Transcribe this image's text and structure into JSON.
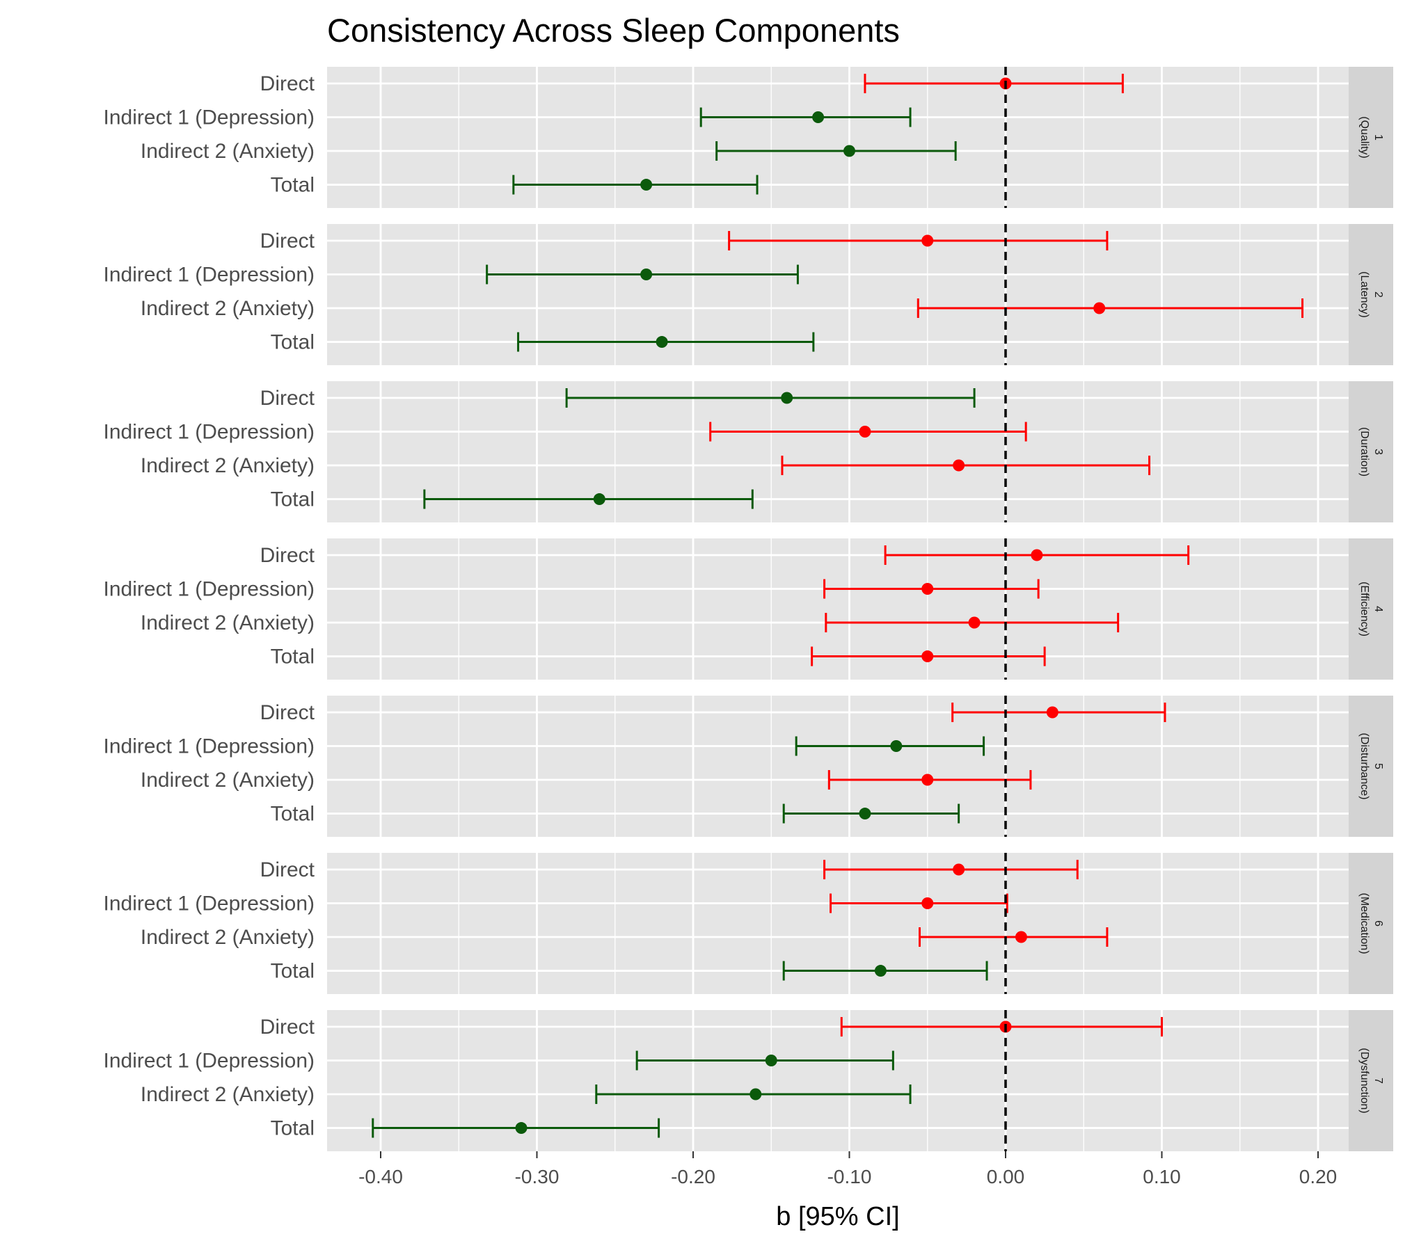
{
  "chart_data": {
    "type": "errorbar",
    "title": "Consistency Across Sleep Components",
    "xlabel": "b [95% CI]",
    "xlim": [
      -0.435,
      0.22
    ],
    "x_ticks": [
      -0.4,
      -0.3,
      -0.2,
      -0.1,
      0.0,
      0.1,
      0.2
    ],
    "x_tick_labels": [
      "-0.40",
      "-0.30",
      "-0.20",
      "-0.10",
      "0.00",
      "0.10",
      "0.20"
    ],
    "reference_line": 0,
    "categories": [
      "Direct",
      "Indirect 1 (Depression)",
      "Indirect 2 (Anxiety)",
      "Total"
    ],
    "colors": {
      "significant": "#0b5a0b",
      "nonsignificant": "#ff0000",
      "reference": "#000000",
      "panel_bg": "#e5e5e5",
      "strip_bg": "#d3d3d3",
      "grid": "#ffffff"
    },
    "grid": true,
    "facets": [
      {
        "number": "1",
        "name": "(Quality)",
        "points": [
          {
            "label": "Direct",
            "estimate": 0.0,
            "lower": -0.09,
            "upper": 0.075,
            "significant": false
          },
          {
            "label": "Indirect 1 (Depression)",
            "estimate": -0.12,
            "lower": -0.195,
            "upper": -0.061,
            "significant": true
          },
          {
            "label": "Indirect 2 (Anxiety)",
            "estimate": -0.1,
            "lower": -0.185,
            "upper": -0.032,
            "significant": true
          },
          {
            "label": "Total",
            "estimate": -0.23,
            "lower": -0.315,
            "upper": -0.159,
            "significant": true
          }
        ]
      },
      {
        "number": "2",
        "name": "(Latency)",
        "points": [
          {
            "label": "Direct",
            "estimate": -0.05,
            "lower": -0.177,
            "upper": 0.065,
            "significant": false
          },
          {
            "label": "Indirect 1 (Depression)",
            "estimate": -0.23,
            "lower": -0.332,
            "upper": -0.133,
            "significant": true
          },
          {
            "label": "Indirect 2 (Anxiety)",
            "estimate": 0.06,
            "lower": -0.056,
            "upper": 0.19,
            "significant": false
          },
          {
            "label": "Total",
            "estimate": -0.22,
            "lower": -0.312,
            "upper": -0.123,
            "significant": true
          }
        ]
      },
      {
        "number": "3",
        "name": "(Duration)",
        "points": [
          {
            "label": "Direct",
            "estimate": -0.14,
            "lower": -0.281,
            "upper": -0.02,
            "significant": true
          },
          {
            "label": "Indirect 1 (Depression)",
            "estimate": -0.09,
            "lower": -0.189,
            "upper": 0.013,
            "significant": false
          },
          {
            "label": "Indirect 2 (Anxiety)",
            "estimate": -0.03,
            "lower": -0.143,
            "upper": 0.092,
            "significant": false
          },
          {
            "label": "Total",
            "estimate": -0.26,
            "lower": -0.372,
            "upper": -0.162,
            "significant": true
          }
        ]
      },
      {
        "number": "4",
        "name": "(Efficiency)",
        "points": [
          {
            "label": "Direct",
            "estimate": 0.02,
            "lower": -0.077,
            "upper": 0.117,
            "significant": false
          },
          {
            "label": "Indirect 1 (Depression)",
            "estimate": -0.05,
            "lower": -0.116,
            "upper": 0.021,
            "significant": false
          },
          {
            "label": "Indirect 2 (Anxiety)",
            "estimate": -0.02,
            "lower": -0.115,
            "upper": 0.072,
            "significant": false
          },
          {
            "label": "Total",
            "estimate": -0.05,
            "lower": -0.124,
            "upper": 0.025,
            "significant": false
          }
        ]
      },
      {
        "number": "5",
        "name": "(Disturbance)",
        "points": [
          {
            "label": "Direct",
            "estimate": 0.03,
            "lower": -0.034,
            "upper": 0.102,
            "significant": false
          },
          {
            "label": "Indirect 1 (Depression)",
            "estimate": -0.07,
            "lower": -0.134,
            "upper": -0.014,
            "significant": true
          },
          {
            "label": "Indirect 2 (Anxiety)",
            "estimate": -0.05,
            "lower": -0.113,
            "upper": 0.016,
            "significant": false
          },
          {
            "label": "Total",
            "estimate": -0.09,
            "lower": -0.142,
            "upper": -0.03,
            "significant": true
          }
        ]
      },
      {
        "number": "6",
        "name": "(Medication)",
        "points": [
          {
            "label": "Direct",
            "estimate": -0.03,
            "lower": -0.116,
            "upper": 0.046,
            "significant": false
          },
          {
            "label": "Indirect 1 (Depression)",
            "estimate": -0.05,
            "lower": -0.112,
            "upper": 0.001,
            "significant": false
          },
          {
            "label": "Indirect 2 (Anxiety)",
            "estimate": 0.01,
            "lower": -0.055,
            "upper": 0.065,
            "significant": false
          },
          {
            "label": "Total",
            "estimate": -0.08,
            "lower": -0.142,
            "upper": -0.012,
            "significant": true
          }
        ]
      },
      {
        "number": "7",
        "name": "(Dysfunction)",
        "points": [
          {
            "label": "Direct",
            "estimate": 0.0,
            "lower": -0.105,
            "upper": 0.1,
            "significant": false
          },
          {
            "label": "Indirect 1 (Depression)",
            "estimate": -0.15,
            "lower": -0.236,
            "upper": -0.072,
            "significant": true
          },
          {
            "label": "Indirect 2 (Anxiety)",
            "estimate": -0.16,
            "lower": -0.262,
            "upper": -0.061,
            "significant": true
          },
          {
            "label": "Total",
            "estimate": -0.31,
            "lower": -0.405,
            "upper": -0.222,
            "significant": true
          }
        ]
      }
    ]
  }
}
